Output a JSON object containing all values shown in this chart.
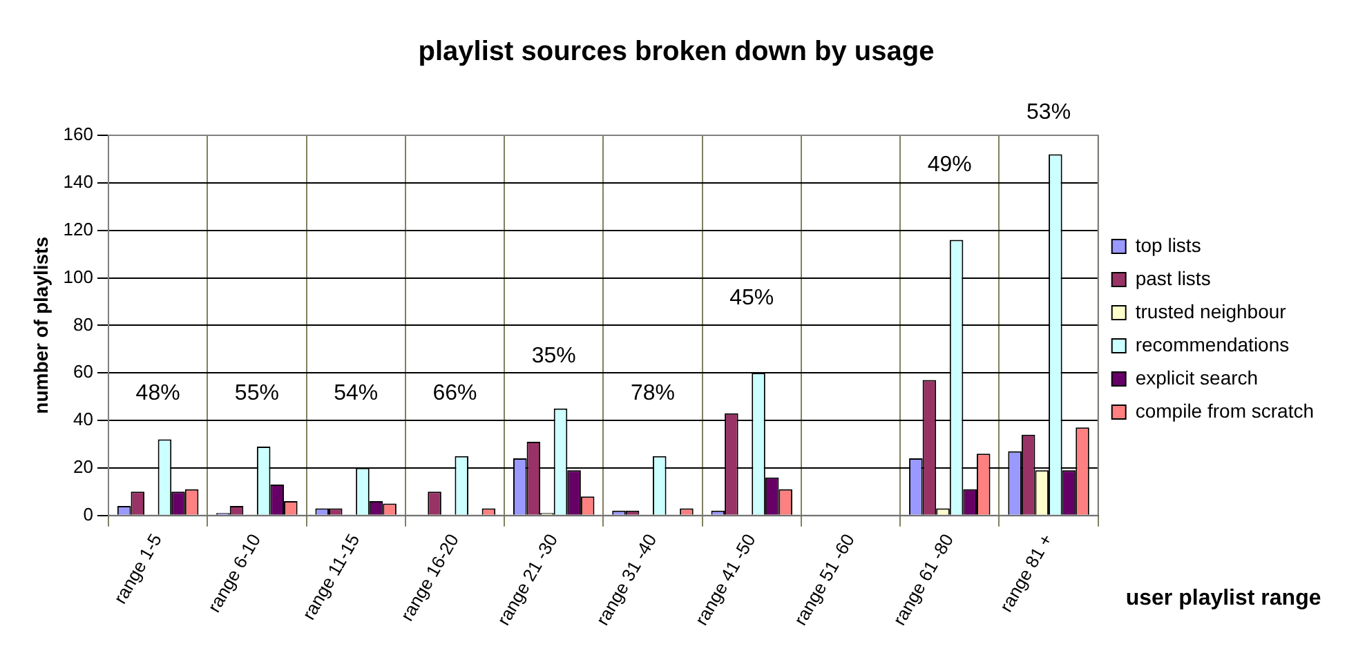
{
  "chart_data": {
    "type": "bar",
    "title": "playlist sources broken down by usage",
    "xlabel": "user playlist range",
    "ylabel": "number of playlists",
    "categories": [
      "range 1-5",
      "range 6-10",
      "range 11-15",
      "range 16-20",
      "range 21 -30",
      "range 31 -40",
      "range 41 -50",
      "range 51 -60",
      "range 61 -80",
      "range 81 +"
    ],
    "series": [
      {
        "name": "top lists",
        "color": "#9999ff",
        "values": [
          4,
          1,
          3,
          0,
          24,
          2,
          2,
          0,
          24,
          27
        ]
      },
      {
        "name": "past lists",
        "color": "#993366",
        "values": [
          10,
          4,
          3,
          10,
          31,
          2,
          43,
          0,
          57,
          34
        ]
      },
      {
        "name": "trusted neighbour",
        "color": "#ffffcc",
        "values": [
          0,
          0,
          0,
          0,
          1,
          0,
          0,
          0,
          3,
          19
        ]
      },
      {
        "name": "recommendations",
        "color": "#ccffff",
        "values": [
          32,
          29,
          20,
          25,
          45,
          25,
          60,
          0,
          116,
          152
        ]
      },
      {
        "name": "explicit search",
        "color": "#660066",
        "values": [
          10,
          13,
          6,
          0,
          19,
          0,
          16,
          0,
          11,
          19
        ]
      },
      {
        "name": "compile from scratch",
        "color": "#ff8080",
        "values": [
          11,
          6,
          5,
          3,
          8,
          3,
          11,
          0,
          26,
          37
        ]
      }
    ],
    "ylim": [
      0,
      160
    ],
    "yticks": [
      0,
      20,
      40,
      60,
      80,
      100,
      120,
      140,
      160
    ],
    "grid": true,
    "legend": "right",
    "annotations": [
      "48%",
      "55%",
      "54%",
      "66%",
      "35%",
      "78%",
      "45%",
      "49%",
      "53%"
    ]
  }
}
